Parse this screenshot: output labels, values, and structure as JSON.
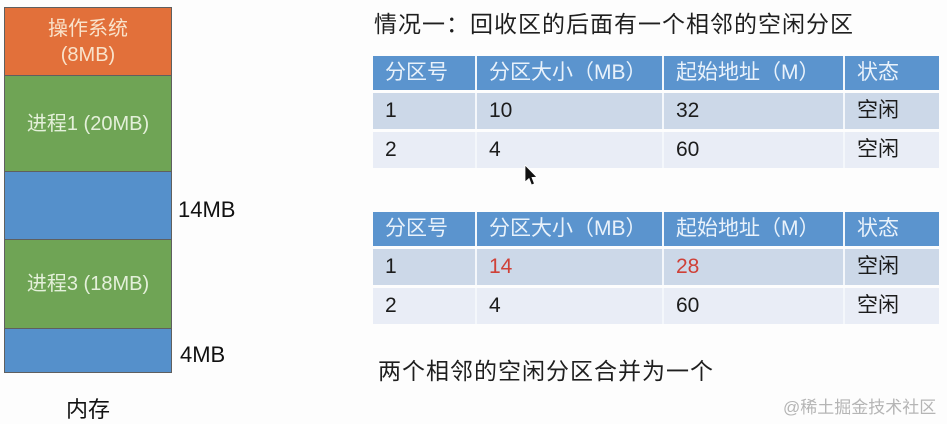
{
  "title": "情况一：回收区的后面有一个相邻的空闲分区",
  "memory": {
    "caption": "内存",
    "blocks": [
      {
        "name": "os",
        "kind": "os",
        "line1": "操作系统",
        "line2": "(8MB)"
      },
      {
        "name": "process-1",
        "kind": "process",
        "line1": "进程1 (20MB)",
        "line2": ""
      },
      {
        "name": "free-14mb",
        "kind": "free",
        "line1": "",
        "line2": ""
      },
      {
        "name": "process-3",
        "kind": "process",
        "line1": "进程3 (18MB)",
        "line2": ""
      },
      {
        "name": "free-4mb",
        "kind": "free",
        "line1": "",
        "line2": ""
      }
    ],
    "side_labels": [
      {
        "text": "14MB"
      },
      {
        "text": "4MB"
      }
    ]
  },
  "tables": [
    {
      "headers": [
        "分区号",
        "分区大小（MB）",
        "起始地址（M）",
        "状态"
      ],
      "rows": [
        [
          {
            "text": "1"
          },
          {
            "text": "10"
          },
          {
            "text": "32"
          },
          {
            "text": "空闲"
          }
        ],
        [
          {
            "text": "2"
          },
          {
            "text": "4"
          },
          {
            "text": "60"
          },
          {
            "text": "空闲"
          }
        ]
      ]
    },
    {
      "headers": [
        "分区号",
        "分区大小（MB）",
        "起始地址（M）",
        "状态"
      ],
      "rows": [
        [
          {
            "text": "1"
          },
          {
            "text": "14",
            "red": true
          },
          {
            "text": "28",
            "red": true
          },
          {
            "text": "空闲"
          }
        ],
        [
          {
            "text": "2"
          },
          {
            "text": "4"
          },
          {
            "text": "60"
          },
          {
            "text": "空闲"
          }
        ]
      ]
    }
  ],
  "footer_note": "两个相邻的空闲分区合并为一个",
  "watermark": "@稀土掘金技术社区",
  "colors": {
    "os_block": "#e2703a",
    "process_block": "#6fa455",
    "free_block": "#5590cb",
    "table_header": "#5b94ce",
    "table_row_odd": "#ccd8e8",
    "table_row_even": "#e9edf6",
    "highlight_red": "#cf4037",
    "watermark_gray": "#b5b5b5"
  }
}
